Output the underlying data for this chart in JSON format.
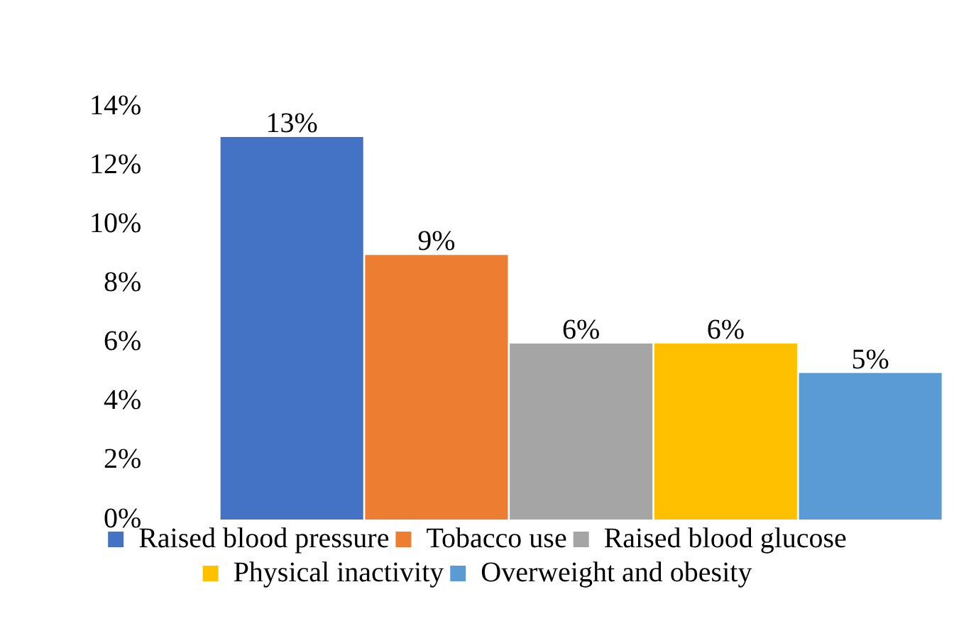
{
  "chart_data": {
    "type": "bar",
    "categories": [
      null
    ],
    "series": [
      {
        "name": "Raised blood pressure",
        "color": "#4472c4",
        "values": [
          13
        ],
        "value_labels": [
          "13%"
        ]
      },
      {
        "name": "Tobacco use",
        "color": "#ed7d31",
        "values": [
          9
        ],
        "value_labels": [
          "9%"
        ]
      },
      {
        "name": "Raised blood glucose",
        "color": "#a5a5a5",
        "values": [
          6
        ],
        "value_labels": [
          "6%"
        ]
      },
      {
        "name": "Physical inactivity",
        "color": "#ffc000",
        "values": [
          6
        ],
        "value_labels": [
          "6%"
        ]
      },
      {
        "name": "Overweight and obesity",
        "color": "#5b9bd5",
        "values": [
          5
        ],
        "value_labels": [
          "5%"
        ]
      }
    ],
    "ylim": [
      0,
      14
    ],
    "yticks": [
      {
        "value": 0,
        "label": "0%"
      },
      {
        "value": 2,
        "label": "2%"
      },
      {
        "value": 4,
        "label": "4%"
      },
      {
        "value": 6,
        "label": "6%"
      },
      {
        "value": 8,
        "label": "8%"
      },
      {
        "value": 10,
        "label": "10%"
      },
      {
        "value": 12,
        "label": "12%"
      },
      {
        "value": 14,
        "label": "14%"
      }
    ],
    "tick_labels": "y",
    "grid": false,
    "legend": "bottom"
  }
}
